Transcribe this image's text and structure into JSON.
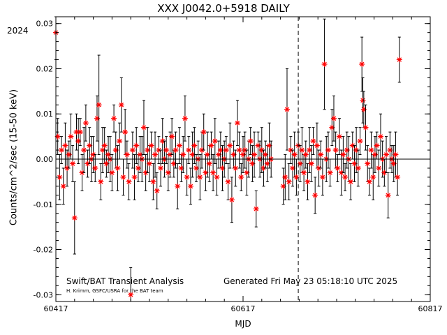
{
  "chart_data": {
    "type": "scatter",
    "title": "XXX J0042.0+5918 DAILY",
    "xlabel": "MJD",
    "ylabel": "Counts/cm^2/sec (15-50 keV)",
    "xlim": [
      60417,
      60817
    ],
    "ylim": [
      -0.0315,
      0.0315
    ],
    "x_ticks": [
      60417,
      60617,
      60817
    ],
    "x_tick_labels": [
      "60417",
      "60617",
      "60817"
    ],
    "y_ticks": [
      -0.03,
      -0.02,
      -0.01,
      0.0,
      0.01,
      0.02,
      0.03
    ],
    "y_tick_labels": [
      "-0.03",
      "-0.02",
      "-0.01",
      "0.00",
      "0.01",
      "0.02",
      "0.03"
    ],
    "year_label": "2024",
    "year_boundary_mjd": 60676,
    "zero_line": 0,
    "colors": {
      "marker": "#ff0000",
      "errorbar": "#000000",
      "axes": "#000000"
    },
    "annotations": {
      "left": "Swift/BAT Transient Analysis",
      "credit": "H. Krimm, GSFC/USRA for the BAT team",
      "generated": "Generated Fri May 23 05:18:10 UTC 2025"
    },
    "series": [
      {
        "marker": "asterisk",
        "points": [
          [
            60417,
            0.028,
            0.006
          ],
          [
            60419,
            0.005,
            0.004
          ],
          [
            60421,
            -0.004,
            0.005
          ],
          [
            60423,
            0.002,
            0.003
          ],
          [
            60425,
            -0.006,
            0.004
          ],
          [
            60427,
            0.003,
            0.005
          ],
          [
            60429,
            -0.002,
            0.004
          ],
          [
            60431,
            0.001,
            0.003
          ],
          [
            60433,
            0.005,
            0.005
          ],
          [
            60435,
            -0.001,
            0.004
          ],
          [
            60437,
            -0.013,
            0.008
          ],
          [
            60439,
            0.006,
            0.004
          ],
          [
            60441,
            0.004,
            0.005
          ],
          [
            60443,
            0.006,
            0.003
          ],
          [
            60445,
            -0.003,
            0.004
          ],
          [
            60447,
            0.002,
            0.005
          ],
          [
            60449,
            0.008,
            0.004
          ],
          [
            60451,
            -0.001,
            0.003
          ],
          [
            60453,
            0.003,
            0.004
          ],
          [
            60455,
            0.0,
            0.005
          ],
          [
            60457,
            0.001,
            0.004
          ],
          [
            60459,
            -0.002,
            0.003
          ],
          [
            60461,
            0.009,
            0.005
          ],
          [
            60463,
            0.012,
            0.011
          ],
          [
            60465,
            -0.005,
            0.004
          ],
          [
            60467,
            0.002,
            0.005
          ],
          [
            60469,
            0.003,
            0.004
          ],
          [
            60471,
            -0.001,
            0.003
          ],
          [
            60473,
            0.001,
            0.004
          ],
          [
            60475,
            0.0,
            0.005
          ],
          [
            60477,
            -0.003,
            0.004
          ],
          [
            60479,
            0.009,
            0.003
          ],
          [
            60481,
            0.002,
            0.004
          ],
          [
            60483,
            -0.002,
            0.005
          ],
          [
            60485,
            0.004,
            0.004
          ],
          [
            60487,
            0.012,
            0.006
          ],
          [
            60489,
            -0.004,
            0.004
          ],
          [
            60491,
            0.006,
            0.005
          ],
          [
            60493,
            0.001,
            0.003
          ],
          [
            60495,
            -0.005,
            0.004
          ],
          [
            60497,
            -0.03,
            0.006
          ],
          [
            60499,
            0.002,
            0.004
          ],
          [
            60501,
            -0.004,
            0.005
          ],
          [
            60503,
            0.003,
            0.004
          ],
          [
            60505,
            -0.002,
            0.003
          ],
          [
            60507,
            0.001,
            0.004
          ],
          [
            60509,
            0.0,
            0.005
          ],
          [
            60511,
            0.007,
            0.006
          ],
          [
            60513,
            -0.003,
            0.004
          ],
          [
            60515,
            0.002,
            0.005
          ],
          [
            60517,
            -0.001,
            0.004
          ],
          [
            60519,
            0.003,
            0.003
          ],
          [
            60521,
            -0.005,
            0.004
          ],
          [
            60523,
            0.001,
            0.005
          ],
          [
            60525,
            -0.007,
            0.004
          ],
          [
            60527,
            0.002,
            0.003
          ],
          [
            60529,
            -0.002,
            0.004
          ],
          [
            60531,
            0.004,
            0.005
          ],
          [
            60533,
            0.0,
            0.004
          ],
          [
            60535,
            0.002,
            0.003
          ],
          [
            60537,
            -0.003,
            0.004
          ],
          [
            60539,
            0.001,
            0.005
          ],
          [
            60541,
            0.005,
            0.004
          ],
          [
            60543,
            -0.001,
            0.003
          ],
          [
            60545,
            0.002,
            0.004
          ],
          [
            60547,
            -0.006,
            0.005
          ],
          [
            60549,
            0.003,
            0.004
          ],
          [
            60551,
            -0.002,
            0.003
          ],
          [
            60553,
            0.001,
            0.004
          ],
          [
            60555,
            0.009,
            0.005
          ],
          [
            60557,
            -0.004,
            0.004
          ],
          [
            60559,
            0.002,
            0.003
          ],
          [
            60561,
            -0.006,
            0.004
          ],
          [
            60563,
            0.001,
            0.005
          ],
          [
            60565,
            0.003,
            0.004
          ],
          [
            60567,
            -0.002,
            0.003
          ],
          [
            60569,
            0.0,
            0.004
          ],
          [
            60571,
            -0.004,
            0.005
          ],
          [
            60573,
            0.002,
            0.004
          ],
          [
            60575,
            0.006,
            0.004
          ],
          [
            60577,
            -0.003,
            0.004
          ],
          [
            60579,
            0.001,
            0.005
          ],
          [
            60581,
            -0.001,
            0.004
          ],
          [
            60583,
            0.003,
            0.003
          ],
          [
            60585,
            -0.003,
            0.004
          ],
          [
            60587,
            0.004,
            0.005
          ],
          [
            60589,
            -0.004,
            0.004
          ],
          [
            60591,
            0.001,
            0.003
          ],
          [
            60593,
            0.002,
            0.004
          ],
          [
            60595,
            -0.002,
            0.005
          ],
          [
            60597,
            0.0,
            0.004
          ],
          [
            60599,
            0.002,
            0.003
          ],
          [
            60601,
            -0.005,
            0.004
          ],
          [
            60603,
            0.003,
            0.005
          ],
          [
            60605,
            -0.009,
            0.005
          ],
          [
            60607,
            0.001,
            0.003
          ],
          [
            60609,
            -0.002,
            0.004
          ],
          [
            60611,
            0.008,
            0.005
          ],
          [
            60613,
            0.002,
            0.004
          ],
          [
            60615,
            -0.004,
            0.003
          ],
          [
            60617,
            0.001,
            0.004
          ],
          [
            60619,
            0.002,
            0.004
          ],
          [
            60621,
            -0.003,
            0.005
          ],
          [
            60623,
            0.0,
            0.004
          ],
          [
            60625,
            0.004,
            0.003
          ],
          [
            60627,
            -0.001,
            0.004
          ],
          [
            60629,
            0.001,
            0.005
          ],
          [
            60631,
            -0.011,
            0.004
          ],
          [
            60633,
            0.003,
            0.003
          ],
          [
            60635,
            0.0,
            0.004
          ],
          [
            60637,
            0.002,
            0.005
          ],
          [
            60639,
            -0.002,
            0.004
          ],
          [
            60641,
            0.001,
            0.003
          ],
          [
            60643,
            -0.001,
            0.004
          ],
          [
            60645,
            0.003,
            0.005
          ],
          [
            60647,
            0.0,
            0.004
          ],
          [
            60660,
            -0.006,
            0.004
          ],
          [
            60662,
            -0.004,
            0.005
          ],
          [
            60664,
            0.011,
            0.009
          ],
          [
            60666,
            -0.005,
            0.004
          ],
          [
            60668,
            0.002,
            0.003
          ],
          [
            60670,
            -0.002,
            0.004
          ],
          [
            60672,
            0.001,
            0.005
          ],
          [
            60674,
            -0.004,
            0.004
          ],
          [
            60676,
            0.003,
            0.003
          ],
          [
            60678,
            -0.001,
            0.004
          ],
          [
            60680,
            0.002,
            0.005
          ],
          [
            60682,
            -0.003,
            0.004
          ],
          [
            60684,
            0.001,
            0.003
          ],
          [
            60686,
            -0.005,
            0.004
          ],
          [
            60688,
            0.002,
            0.005
          ],
          [
            60690,
            -0.001,
            0.004
          ],
          [
            60692,
            0.004,
            0.003
          ],
          [
            60694,
            -0.008,
            0.004
          ],
          [
            60696,
            0.003,
            0.005
          ],
          [
            60698,
            -0.002,
            0.004
          ],
          [
            60700,
            0.001,
            0.003
          ],
          [
            60702,
            -0.004,
            0.004
          ],
          [
            60704,
            0.021,
            0.01
          ],
          [
            60706,
            0.0,
            0.005
          ],
          [
            60708,
            0.002,
            0.004
          ],
          [
            60710,
            -0.003,
            0.003
          ],
          [
            60712,
            0.007,
            0.004
          ],
          [
            60714,
            0.009,
            0.005
          ],
          [
            60716,
            0.002,
            0.004
          ],
          [
            60718,
            -0.002,
            0.003
          ],
          [
            60720,
            0.005,
            0.004
          ],
          [
            60722,
            -0.003,
            0.005
          ],
          [
            60724,
            0.001,
            0.004
          ],
          [
            60726,
            -0.004,
            0.003
          ],
          [
            60728,
            0.002,
            0.004
          ],
          [
            60730,
            0.0,
            0.005
          ],
          [
            60732,
            -0.005,
            0.004
          ],
          [
            60734,
            0.003,
            0.003
          ],
          [
            60736,
            -0.001,
            0.004
          ],
          [
            60738,
            0.002,
            0.005
          ],
          [
            60740,
            -0.002,
            0.004
          ],
          [
            60742,
            0.004,
            0.003
          ],
          [
            60744,
            0.021,
            0.006
          ],
          [
            60745,
            0.013,
            0.005
          ],
          [
            60746,
            0.011,
            0.004
          ],
          [
            60748,
            0.007,
            0.005
          ],
          [
            60750,
            -0.001,
            0.004
          ],
          [
            60752,
            -0.005,
            0.003
          ],
          [
            60754,
            0.002,
            0.004
          ],
          [
            60756,
            -0.004,
            0.005
          ],
          [
            60758,
            0.001,
            0.004
          ],
          [
            60760,
            0.003,
            0.003
          ],
          [
            60762,
            -0.002,
            0.004
          ],
          [
            60764,
            0.005,
            0.005
          ],
          [
            60766,
            0.0,
            0.004
          ],
          [
            60768,
            -0.003,
            0.003
          ],
          [
            60770,
            0.001,
            0.004
          ],
          [
            60772,
            -0.008,
            0.005
          ],
          [
            60774,
            0.002,
            0.004
          ],
          [
            60776,
            0.0,
            0.003
          ],
          [
            60778,
            -0.001,
            0.004
          ],
          [
            60780,
            0.001,
            0.005
          ],
          [
            60782,
            -0.004,
            0.004
          ],
          [
            60784,
            0.022,
            0.005
          ]
        ]
      }
    ]
  }
}
